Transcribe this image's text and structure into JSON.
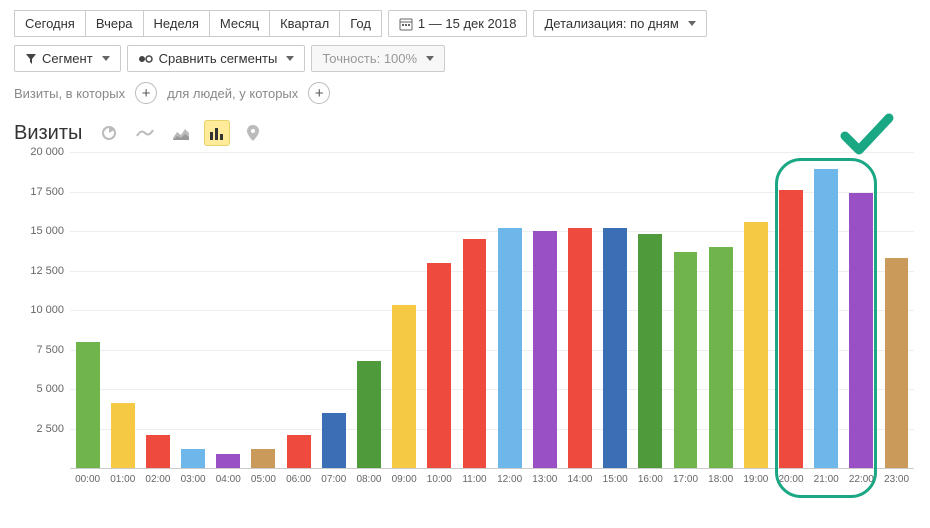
{
  "period_buttons": [
    "Сегодня",
    "Вчера",
    "Неделя",
    "Месяц",
    "Квартал",
    "Год"
  ],
  "date_range": "1 — 15 дек 2018",
  "detail_label": "Детализация: по дням",
  "segment_label": "Сегмент",
  "compare_label": "Сравнить сегменты",
  "accuracy_label": "Точность: 100%",
  "filter1": "Визиты, в которых",
  "filter2": "для людей, у которых",
  "chart_title": "Визиты",
  "chart": {
    "type": "bar",
    "ymax": 20000,
    "ytick_step": 2500,
    "y_ticks": [
      "20 000",
      "17 500",
      "15 000",
      "12 500",
      "10 000",
      "7 500",
      "5 000",
      "2 500"
    ],
    "categories": [
      "00:00",
      "01:00",
      "02:00",
      "03:00",
      "04:00",
      "05:00",
      "06:00",
      "07:00",
      "08:00",
      "09:00",
      "10:00",
      "11:00",
      "12:00",
      "13:00",
      "14:00",
      "15:00",
      "16:00",
      "17:00",
      "18:00",
      "19:00",
      "20:00",
      "21:00",
      "22:00",
      "23:00"
    ],
    "values": [
      8000,
      4100,
      2100,
      1200,
      900,
      1200,
      2100,
      3500,
      6800,
      10300,
      13000,
      14500,
      15200,
      15000,
      15200,
      15200,
      14800,
      13700,
      14000,
      15600,
      17600,
      18900,
      17400,
      13300
    ],
    "bar_colors": [
      "#6fb54b",
      "#f6c945",
      "#ee4b3e",
      "#6db7ea",
      "#9850c4",
      "#c99a5a",
      "#ee4b3e",
      "#3b6fb5",
      "#4f9a3a",
      "#f6c945",
      "#ee4b3e",
      "#ee4b3e",
      "#6db7ea",
      "#9850c4",
      "#ee4b3e",
      "#3b6fb5",
      "#4f9a3a",
      "#6fb54b",
      "#6fb54b",
      "#f6c945",
      "#ee4b3e",
      "#6db7ea",
      "#9850c4",
      "#c99a5a"
    ],
    "grid_color": "#eeeeee",
    "background_color": "#ffffff",
    "label_fontsize": 11
  },
  "highlight": {
    "start_index": 20,
    "end_index": 22,
    "color": "#1aa783"
  },
  "checkmark_color": "#1aa783"
}
